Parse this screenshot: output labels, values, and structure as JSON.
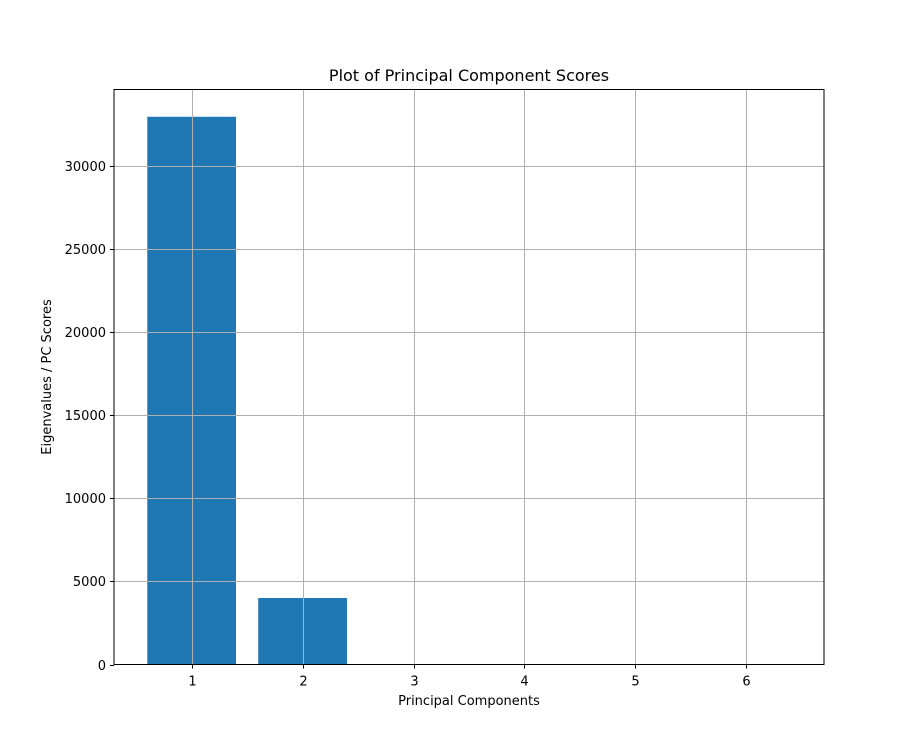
{
  "chart_data": {
    "type": "bar",
    "title": "Plot of Principal Component Scores",
    "xlabel": "Principal Components",
    "ylabel": "Eigenvalues / PC Scores",
    "categories": [
      1,
      2,
      3,
      4,
      5,
      6
    ],
    "x_tick_labels": [
      "1",
      "2",
      "3",
      "4",
      "5",
      "6"
    ],
    "values": [
      32960,
      4000,
      3,
      2,
      1,
      0.5
    ],
    "xlim": [
      0.3,
      6.7
    ],
    "ylim": [
      0,
      34600
    ],
    "y_ticks": [
      0,
      5000,
      10000,
      15000,
      20000,
      25000,
      30000
    ],
    "y_tick_labels": [
      "0",
      "5000",
      "10000",
      "15000",
      "20000",
      "25000",
      "30000"
    ],
    "grid": true,
    "bar_color": "#1f77b4",
    "grid_color": "#b0b0b0"
  }
}
